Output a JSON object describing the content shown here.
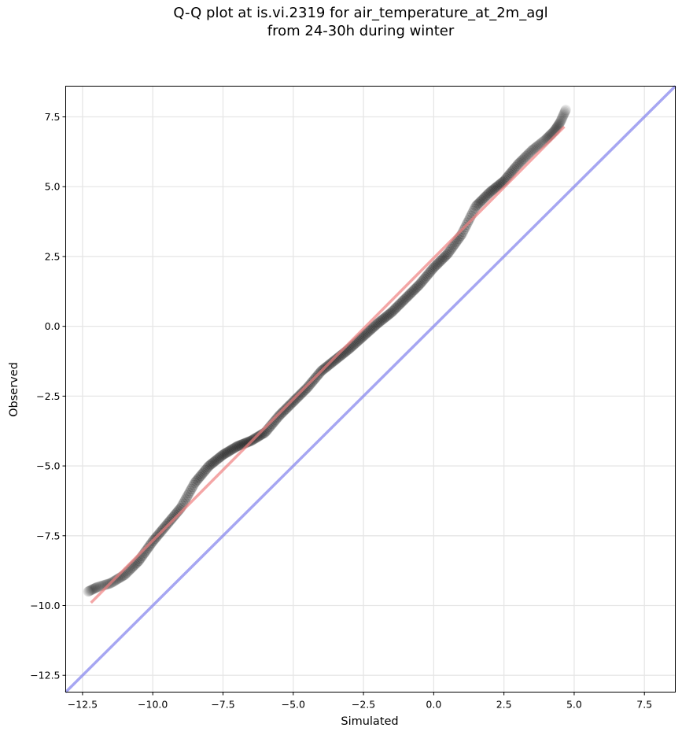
{
  "figure": {
    "title_line1": "Q-Q plot at is.vi.2319 for air_temperature_at_2m_agl",
    "title_line2": "from 24-30h during winter"
  },
  "chart_data": {
    "type": "scatter",
    "title": "Q-Q plot at is.vi.2319 for air_temperature_at_2m_agl\nfrom 24-30h during winter",
    "xlabel": "Simulated",
    "ylabel": "Observed",
    "xlim": [
      -13.1,
      8.6
    ],
    "ylim": [
      -13.1,
      8.6
    ],
    "grid": true,
    "x_ticks": [
      -12.5,
      -10.0,
      -7.5,
      -5.0,
      -2.5,
      0.0,
      2.5,
      5.0,
      7.5
    ],
    "y_ticks": [
      -12.5,
      -10.0,
      -7.5,
      -5.0,
      -2.5,
      0.0,
      2.5,
      5.0,
      7.5
    ],
    "x_tick_labels": [
      "−12.5",
      "−10.0",
      "−7.5",
      "−5.0",
      "−2.5",
      "0.0",
      "2.5",
      "5.0",
      "7.5"
    ],
    "y_tick_labels": [
      "−12.5",
      "−10.0",
      "−7.5",
      "−5.0",
      "−2.5",
      "0.0",
      "2.5",
      "5.0",
      "7.5"
    ],
    "colors": {
      "points": "#000000",
      "fit_line": "#f08080",
      "identity_line": "#8888ee"
    },
    "quantile_curve": [
      [
        -12.3,
        -9.5
      ],
      [
        -12.0,
        -9.35
      ],
      [
        -11.5,
        -9.2
      ],
      [
        -11.0,
        -8.9
      ],
      [
        -10.5,
        -8.4
      ],
      [
        -10.0,
        -7.7
      ],
      [
        -9.5,
        -7.1
      ],
      [
        -9.0,
        -6.5
      ],
      [
        -8.5,
        -5.6
      ],
      [
        -8.0,
        -5.0
      ],
      [
        -7.5,
        -4.6
      ],
      [
        -7.0,
        -4.3
      ],
      [
        -6.5,
        -4.1
      ],
      [
        -6.0,
        -3.8
      ],
      [
        -5.5,
        -3.2
      ],
      [
        -5.0,
        -2.7
      ],
      [
        -4.5,
        -2.2
      ],
      [
        -4.0,
        -1.6
      ],
      [
        -3.5,
        -1.2
      ],
      [
        -3.0,
        -0.8
      ],
      [
        -2.5,
        -0.35
      ],
      [
        -2.0,
        0.1
      ],
      [
        -1.5,
        0.5
      ],
      [
        -1.0,
        1.0
      ],
      [
        -0.5,
        1.5
      ],
      [
        0.0,
        2.1
      ],
      [
        0.5,
        2.6
      ],
      [
        1.0,
        3.3
      ],
      [
        1.5,
        4.3
      ],
      [
        2.0,
        4.8
      ],
      [
        2.5,
        5.2
      ],
      [
        3.0,
        5.8
      ],
      [
        3.5,
        6.3
      ],
      [
        4.0,
        6.7
      ],
      [
        4.3,
        7.0
      ],
      [
        4.5,
        7.3
      ],
      [
        4.7,
        7.75
      ]
    ],
    "fit_line": {
      "x": [
        -12.2,
        4.65
      ],
      "y": [
        -9.9,
        7.15
      ]
    },
    "identity_line": {
      "x": [
        -13.1,
        8.6
      ],
      "y": [
        -13.1,
        8.6
      ]
    }
  }
}
